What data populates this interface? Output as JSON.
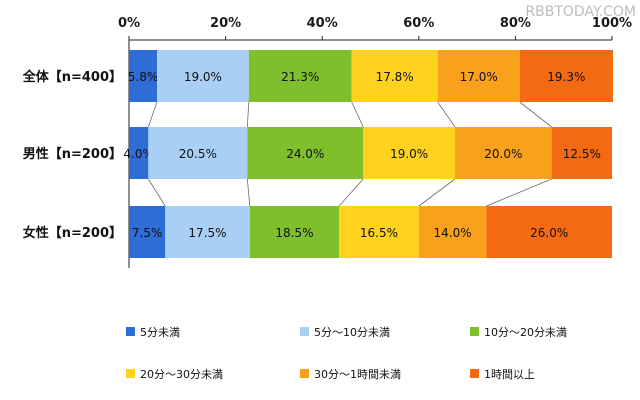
{
  "watermark": "RBBTODAY.COM",
  "chart_data": {
    "type": "bar",
    "orientation": "horizontal",
    "stacked": true,
    "percent_axis": true,
    "xlim": [
      0,
      100
    ],
    "x_ticks": [
      "0%",
      "20%",
      "40%",
      "60%",
      "80%",
      "100%"
    ],
    "categories": [
      "全体【n=400】",
      "男性【n=200】",
      "女性【n=200】"
    ],
    "series": [
      {
        "name": "5分未満",
        "color": "#2e6cd6",
        "values": [
          5.8,
          4.0,
          7.5
        ]
      },
      {
        "name": "5分～10分未満",
        "color": "#a9d0f4",
        "values": [
          19.0,
          20.5,
          17.5
        ]
      },
      {
        "name": "10分～20分未満",
        "color": "#7fbf2c",
        "values": [
          21.3,
          24.0,
          18.5
        ]
      },
      {
        "name": "20分～30分未満",
        "color": "#ffd31d",
        "values": [
          17.8,
          19.0,
          16.5
        ]
      },
      {
        "name": "30分～1時間未満",
        "color": "#f9a11b",
        "values": [
          17.0,
          20.0,
          14.0
        ]
      },
      {
        "name": "1時間以上",
        "color": "#f46a12",
        "values": [
          19.3,
          12.5,
          26.0
        ]
      }
    ],
    "value_labels": [
      [
        "5.8%",
        "19.0%",
        "21.3%",
        "17.8%",
        "17.0%",
        "19.3%"
      ],
      [
        "4.0%",
        "20.5%",
        "24.0%",
        "19.0%",
        "20.0%",
        "12.5%"
      ],
      [
        "7.5%",
        "17.5%",
        "18.5%",
        "16.5%",
        "14.0%",
        "26.0%"
      ]
    ],
    "legend_position": "bottom",
    "grid": false
  }
}
